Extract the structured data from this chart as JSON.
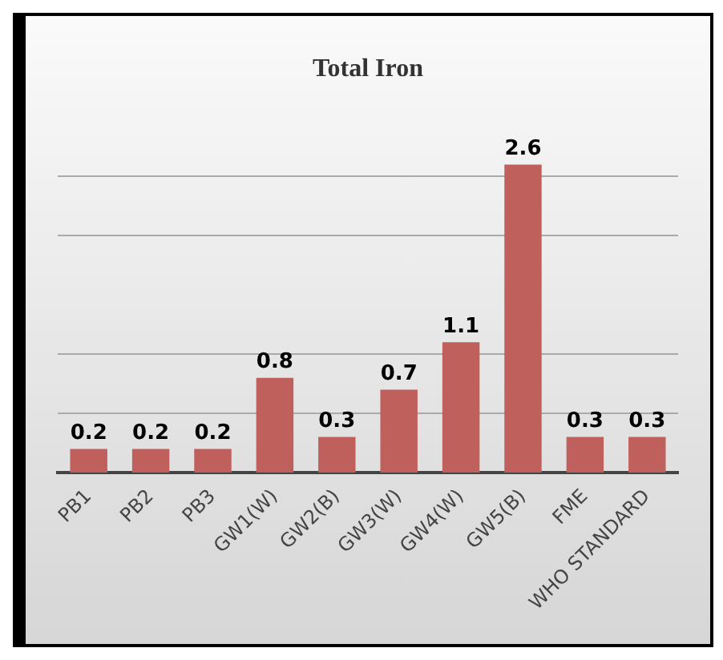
{
  "chart_data": {
    "type": "bar",
    "title": "Total Iron",
    "categories": [
      "PB1",
      "PB2",
      "PB3",
      "GW1(W)",
      "GW2(B)",
      "GW3(W)",
      "GW4(W)",
      "GW5(B)",
      "FME",
      "WHO STANDARD"
    ],
    "values": [
      0.2,
      0.2,
      0.2,
      0.8,
      0.3,
      0.7,
      1.1,
      2.6,
      0.3,
      0.3
    ],
    "color": "#c0605d",
    "yticks": [
      {
        "value": 0.5,
        "label": null
      },
      {
        "value": 1,
        "label": null
      },
      {
        "value": 2,
        "label": null
      },
      {
        "value": 2.5,
        "label": null
      }
    ],
    "grid": "y",
    "tick_labels": "x",
    "data_labels": true,
    "legend": false
  }
}
